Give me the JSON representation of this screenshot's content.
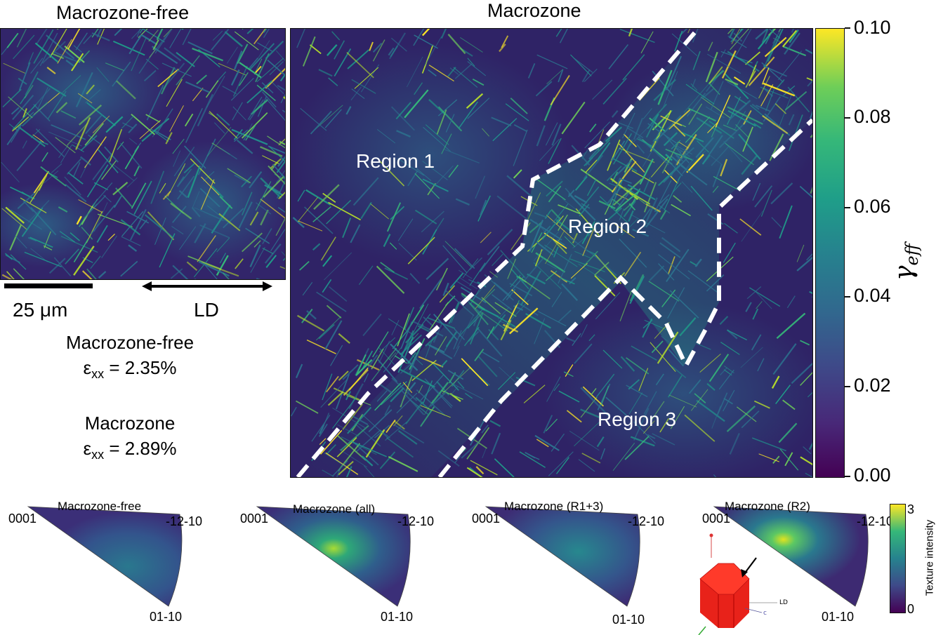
{
  "panels": {
    "left_title": "Macrozone-free",
    "right_title": "Macrozone"
  },
  "scale_bar": {
    "label": "25 μm"
  },
  "direction": {
    "label": "LD"
  },
  "regions": [
    "Region 1",
    "Region 2",
    "Region 3"
  ],
  "colorbar": {
    "label": "γ",
    "label_sub": "eff",
    "ticks": [
      "0.10",
      "0.08",
      "0.06",
      "0.04",
      "0.02",
      "0.00"
    ]
  },
  "strain_labels": [
    {
      "name": "Macrozone-free",
      "prefix": "ε",
      "sub": "xx",
      "value": " = 2.35%"
    },
    {
      "name": "Macrozone",
      "prefix": "ε",
      "sub": "xx",
      "value": " = 2.89%"
    }
  ],
  "ipf": {
    "corner_0001": "0001",
    "corner_1210": "-12-10",
    "corner_0110": "01-10",
    "titles": [
      "Macrozone-free",
      "Macrozone (all)",
      "Macrozone (R1+3)",
      "Macrozone (R2)"
    ],
    "colorbar": {
      "label": "Texture intensity",
      "max": "3",
      "min": "0"
    },
    "crystal_labels": {
      "ld": "LD",
      "c": "c"
    }
  },
  "colors": {
    "low": "#440154",
    "mid": "#21918c",
    "high": "#fde725",
    "crystal": "#e8221a"
  }
}
